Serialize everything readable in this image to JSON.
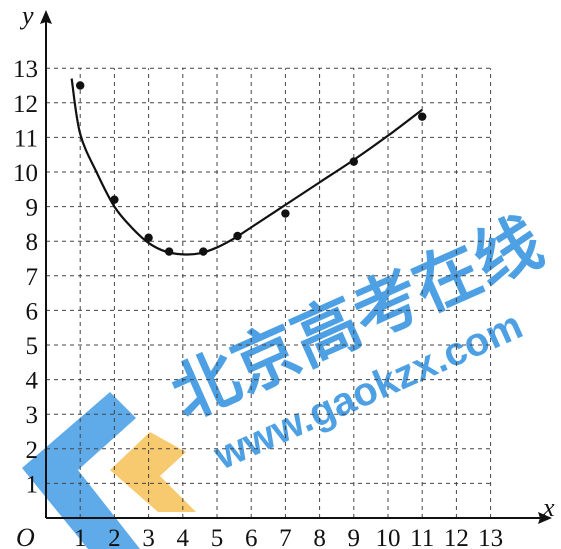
{
  "chart_data": {
    "type": "scatter",
    "xlabel": "x",
    "ylabel": "y",
    "origin_label": "O",
    "xlim": [
      0,
      13
    ],
    "ylim": [
      0,
      13
    ],
    "x_ticks": [
      1,
      2,
      3,
      4,
      5,
      6,
      7,
      8,
      9,
      10,
      11,
      12,
      13
    ],
    "y_ticks": [
      1,
      2,
      3,
      4,
      5,
      6,
      7,
      8,
      9,
      10,
      11,
      12,
      13
    ],
    "grid": true,
    "points": [
      {
        "x": 1,
        "y": 12.5
      },
      {
        "x": 2,
        "y": 9.2
      },
      {
        "x": 3,
        "y": 8.1
      },
      {
        "x": 3.6,
        "y": 7.7
      },
      {
        "x": 4.6,
        "y": 7.7
      },
      {
        "x": 5.6,
        "y": 8.15
      },
      {
        "x": 7,
        "y": 8.8
      },
      {
        "x": 9,
        "y": 10.3
      },
      {
        "x": 11,
        "y": 11.6
      }
    ],
    "fitted_curve": [
      {
        "x": 0.75,
        "y": 12.7
      },
      {
        "x": 1.0,
        "y": 11.1
      },
      {
        "x": 1.5,
        "y": 9.95
      },
      {
        "x": 2.0,
        "y": 9.0
      },
      {
        "x": 2.5,
        "y": 8.4
      },
      {
        "x": 3.0,
        "y": 7.95
      },
      {
        "x": 3.5,
        "y": 7.7
      },
      {
        "x": 4.0,
        "y": 7.62
      },
      {
        "x": 4.5,
        "y": 7.65
      },
      {
        "x": 5.0,
        "y": 7.82
      },
      {
        "x": 5.5,
        "y": 8.08
      },
      {
        "x": 6.0,
        "y": 8.4
      },
      {
        "x": 7.0,
        "y": 9.05
      },
      {
        "x": 8.0,
        "y": 9.7
      },
      {
        "x": 9.0,
        "y": 10.35
      },
      {
        "x": 10.0,
        "y": 11.05
      },
      {
        "x": 11.0,
        "y": 11.8
      }
    ]
  },
  "watermark": {
    "text_cn": "北京高考在线",
    "text_url": "www.gaokzx.com",
    "color_blue": "#2d8fe0",
    "color_yellow": "#f5b942"
  }
}
